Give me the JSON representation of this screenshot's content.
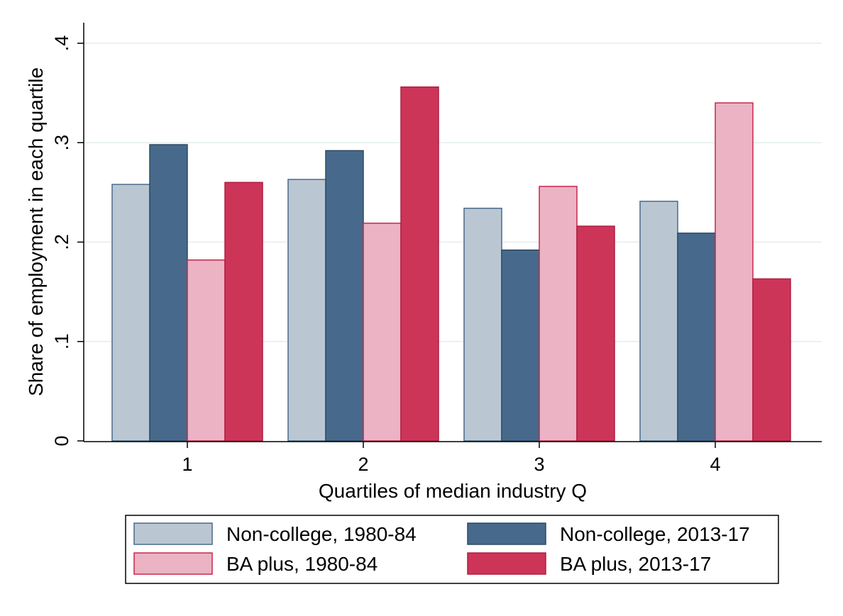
{
  "chart_data": {
    "type": "bar",
    "title": "",
    "xlabel": "Quartiles of median industry Q",
    "ylabel": "Share of employment in each quartile",
    "categories": [
      "1",
      "2",
      "3",
      "4"
    ],
    "ylim": [
      0,
      0.4
    ],
    "yticks": [
      0,
      0.1,
      0.2,
      0.3,
      0.4
    ],
    "ytick_labels": [
      "0",
      ".1",
      ".2",
      ".3",
      ".4"
    ],
    "grid": true,
    "legend_position": "bottom",
    "series": [
      {
        "name": "Non-college, 1980-84",
        "values": [
          0.258,
          0.263,
          0.234,
          0.241
        ],
        "color": "#bac7d2",
        "stroke": "#4a6a8a"
      },
      {
        "name": "Non-college, 2013-17",
        "values": [
          0.298,
          0.292,
          0.192,
          0.209
        ],
        "color": "#476a8c",
        "stroke": "#2e4a66"
      },
      {
        "name": "BA plus, 1980-84",
        "values": [
          0.182,
          0.219,
          0.256,
          0.34
        ],
        "color": "#ebb3c3",
        "stroke": "#c8264f"
      },
      {
        "name": "BA plus, 2013-17",
        "values": [
          0.26,
          0.356,
          0.216,
          0.163
        ],
        "color": "#cd3558",
        "stroke": "#b01e42"
      }
    ]
  }
}
